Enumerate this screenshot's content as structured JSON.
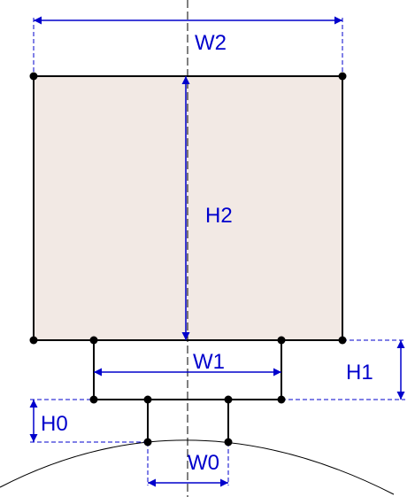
{
  "labels": {
    "w2": "W2",
    "h2": "H2",
    "w1": "W1",
    "h1": "H1",
    "h0": "H0",
    "w0": "W0"
  },
  "colors": {
    "outline": "#000000",
    "dimension": "#0000cc",
    "fill": "#f2e9e4",
    "centerline": "#000000"
  }
}
